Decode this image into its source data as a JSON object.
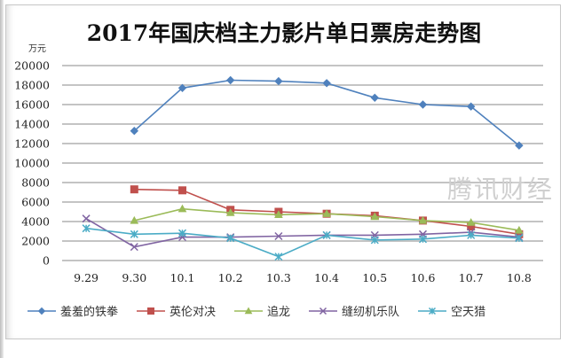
{
  "chart_data": {
    "type": "line",
    "title": "2017年国庆档主力影片单日票房走势图",
    "ylabel": "万元",
    "xlabel": "",
    "ylim": [
      0,
      20000
    ],
    "yticks": [
      "0",
      "2000",
      "4000",
      "6000",
      "8000",
      "10000",
      "12000",
      "14000",
      "16000",
      "18000",
      "20000"
    ],
    "grid": true,
    "legend_position": "bottom",
    "categories": [
      "9.29",
      "9.30",
      "10.1",
      "10.2",
      "10.3",
      "10.4",
      "10.5",
      "10.6",
      "10.7",
      "10.8"
    ],
    "series": [
      {
        "name": "羞羞的铁拳",
        "color": "#4f81bd",
        "marker": "diamond",
        "values": [
          null,
          13300,
          17700,
          18500,
          18400,
          18200,
          16700,
          16000,
          15800,
          11800
        ]
      },
      {
        "name": "英伦对决",
        "color": "#c0504d",
        "marker": "square",
        "values": [
          null,
          7300,
          7200,
          5200,
          5000,
          4800,
          4600,
          4100,
          3500,
          2700
        ]
      },
      {
        "name": "追龙",
        "color": "#9bbb59",
        "marker": "triangle",
        "values": [
          null,
          4100,
          5300,
          4900,
          4700,
          4800,
          4500,
          4100,
          3900,
          3100
        ]
      },
      {
        "name": "缝纫机乐队",
        "color": "#8064a2",
        "marker": "x",
        "values": [
          4300,
          1400,
          2400,
          2400,
          2500,
          2600,
          2600,
          2700,
          2900,
          2400
        ]
      },
      {
        "name": "空天猎",
        "color": "#4bacc6",
        "marker": "star",
        "values": [
          3300,
          2700,
          2800,
          2300,
          400,
          2600,
          2100,
          2200,
          2600,
          2300
        ]
      }
    ]
  },
  "watermark": "腾讯财经"
}
